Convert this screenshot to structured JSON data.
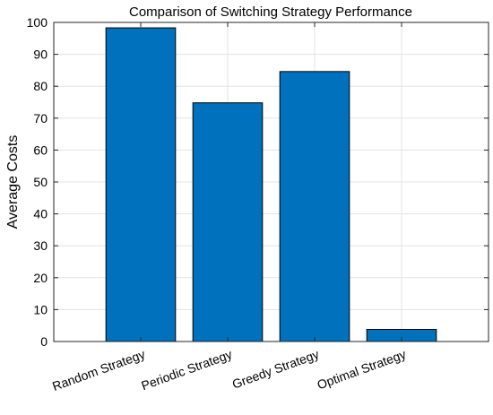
{
  "chart_data": {
    "type": "bar",
    "title": "Comparison of Switching Strategy Performance",
    "xlabel": "",
    "ylabel": "Average Costs",
    "categories": [
      "Random Strategy",
      "Periodic Strategy",
      "Greedy Strategy",
      "Optimal Strategy"
    ],
    "values": [
      98.3,
      74.8,
      84.6,
      3.8
    ],
    "ylim": [
      0,
      100
    ],
    "yticks": [
      0,
      10,
      20,
      30,
      40,
      50,
      60,
      70,
      80,
      90,
      100
    ],
    "ytick_labels": [
      "0",
      "10",
      "20",
      "30",
      "40",
      "50",
      "60",
      "70",
      "80",
      "90",
      "100"
    ],
    "grid": true,
    "bar_color": "#0072BD",
    "edge_color": "#000000"
  }
}
